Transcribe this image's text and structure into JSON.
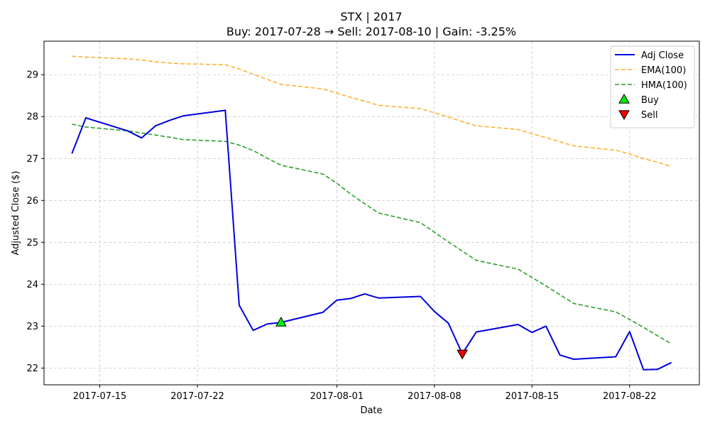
{
  "chart_data": {
    "type": "line",
    "title": "STX | 2017",
    "subtitle": "Buy: 2017-07-28  →  Sell: 2017-08-10  |  Gain: -3.25%",
    "xlabel": "Date",
    "ylabel": "Adjusted Close ($)",
    "ylim": [
      21.6,
      29.8
    ],
    "xlim": [
      "2017-07-11",
      "2017-08-27"
    ],
    "grid": true,
    "grid_style": "dashed",
    "legend_position": "top-right",
    "x_ticks": [
      "2017-07-15",
      "2017-07-22",
      "2017-08-01",
      "2017-08-08",
      "2017-08-15",
      "2017-08-22"
    ],
    "y_ticks": [
      22,
      23,
      24,
      25,
      26,
      27,
      28,
      29
    ],
    "series": [
      {
        "name": "Adj Close",
        "color": "#0000dd",
        "style": "solid",
        "points": [
          [
            "2017-07-13",
            27.12
          ],
          [
            "2017-07-14",
            27.97
          ],
          [
            "2017-07-17",
            27.66
          ],
          [
            "2017-07-18",
            27.49
          ],
          [
            "2017-07-19",
            27.78
          ],
          [
            "2017-07-20",
            27.91
          ],
          [
            "2017-07-21",
            28.02
          ],
          [
            "2017-07-24",
            28.15
          ],
          [
            "2017-07-25",
            23.5
          ],
          [
            "2017-07-26",
            22.9
          ],
          [
            "2017-07-27",
            23.05
          ],
          [
            "2017-07-28",
            23.09
          ],
          [
            "2017-07-31",
            23.33
          ],
          [
            "2017-08-01",
            23.62
          ],
          [
            "2017-08-02",
            23.66
          ],
          [
            "2017-08-03",
            23.77
          ],
          [
            "2017-08-04",
            23.67
          ],
          [
            "2017-08-07",
            23.71
          ],
          [
            "2017-08-08",
            23.35
          ],
          [
            "2017-08-09",
            23.07
          ],
          [
            "2017-08-10",
            22.34
          ],
          [
            "2017-08-11",
            22.86
          ],
          [
            "2017-08-14",
            23.04
          ],
          [
            "2017-08-15",
            22.85
          ],
          [
            "2017-08-16",
            23.0
          ],
          [
            "2017-08-17",
            22.31
          ],
          [
            "2017-08-18",
            22.21
          ],
          [
            "2017-08-21",
            22.27
          ],
          [
            "2017-08-22",
            22.87
          ],
          [
            "2017-08-23",
            21.96
          ],
          [
            "2017-08-24",
            21.97
          ],
          [
            "2017-08-25",
            22.13
          ]
        ]
      },
      {
        "name": "EMA(100)",
        "color": "#ffb233",
        "style": "dashed",
        "points": [
          [
            "2017-07-13",
            29.44
          ],
          [
            "2017-07-14",
            29.42
          ],
          [
            "2017-07-17",
            29.38
          ],
          [
            "2017-07-18",
            29.35
          ],
          [
            "2017-07-19",
            29.31
          ],
          [
            "2017-07-20",
            29.28
          ],
          [
            "2017-07-21",
            29.26
          ],
          [
            "2017-07-24",
            29.24
          ],
          [
            "2017-07-25",
            29.14
          ],
          [
            "2017-07-26",
            29.01
          ],
          [
            "2017-07-27",
            28.89
          ],
          [
            "2017-07-28",
            28.77
          ],
          [
            "2017-07-31",
            28.66
          ],
          [
            "2017-08-01",
            28.56
          ],
          [
            "2017-08-02",
            28.46
          ],
          [
            "2017-08-03",
            28.37
          ],
          [
            "2017-08-04",
            28.27
          ],
          [
            "2017-08-07",
            28.19
          ],
          [
            "2017-08-08",
            28.09
          ],
          [
            "2017-08-09",
            27.99
          ],
          [
            "2017-08-10",
            27.88
          ],
          [
            "2017-08-11",
            27.78
          ],
          [
            "2017-08-14",
            27.69
          ],
          [
            "2017-08-15",
            27.59
          ],
          [
            "2017-08-16",
            27.5
          ],
          [
            "2017-08-17",
            27.4
          ],
          [
            "2017-08-18",
            27.3
          ],
          [
            "2017-08-21",
            27.2
          ],
          [
            "2017-08-22",
            27.11
          ],
          [
            "2017-08-23",
            27.0
          ],
          [
            "2017-08-24",
            26.91
          ],
          [
            "2017-08-25",
            26.81
          ]
        ]
      },
      {
        "name": "HMA(100)",
        "color": "#2ca02c",
        "style": "dashed",
        "points": [
          [
            "2017-07-13",
            27.82
          ],
          [
            "2017-07-14",
            27.75
          ],
          [
            "2017-07-17",
            27.66
          ],
          [
            "2017-07-18",
            27.61
          ],
          [
            "2017-07-19",
            27.56
          ],
          [
            "2017-07-20",
            27.51
          ],
          [
            "2017-07-21",
            27.45
          ],
          [
            "2017-07-24",
            27.41
          ],
          [
            "2017-07-25",
            27.32
          ],
          [
            "2017-07-26",
            27.19
          ],
          [
            "2017-07-27",
            27.01
          ],
          [
            "2017-07-28",
            26.84
          ],
          [
            "2017-07-31",
            26.63
          ],
          [
            "2017-08-01",
            26.41
          ],
          [
            "2017-08-02",
            26.15
          ],
          [
            "2017-08-03",
            25.92
          ],
          [
            "2017-08-04",
            25.7
          ],
          [
            "2017-08-07",
            25.47
          ],
          [
            "2017-08-08",
            25.24
          ],
          [
            "2017-08-09",
            25.01
          ],
          [
            "2017-08-10",
            24.79
          ],
          [
            "2017-08-11",
            24.57
          ],
          [
            "2017-08-14",
            24.36
          ],
          [
            "2017-08-15",
            24.16
          ],
          [
            "2017-08-16",
            23.96
          ],
          [
            "2017-08-17",
            23.75
          ],
          [
            "2017-08-18",
            23.54
          ],
          [
            "2017-08-21",
            23.34
          ],
          [
            "2017-08-22",
            23.16
          ],
          [
            "2017-08-23",
            22.97
          ],
          [
            "2017-08-24",
            22.77
          ],
          [
            "2017-08-25",
            22.58
          ]
        ]
      }
    ],
    "markers": [
      {
        "name": "Buy",
        "date": "2017-07-28",
        "value": 23.09,
        "shape": "triangle-up",
        "color": "#00ee00"
      },
      {
        "name": "Sell",
        "date": "2017-08-10",
        "value": 22.34,
        "shape": "triangle-down",
        "color": "#ee0000"
      }
    ]
  }
}
